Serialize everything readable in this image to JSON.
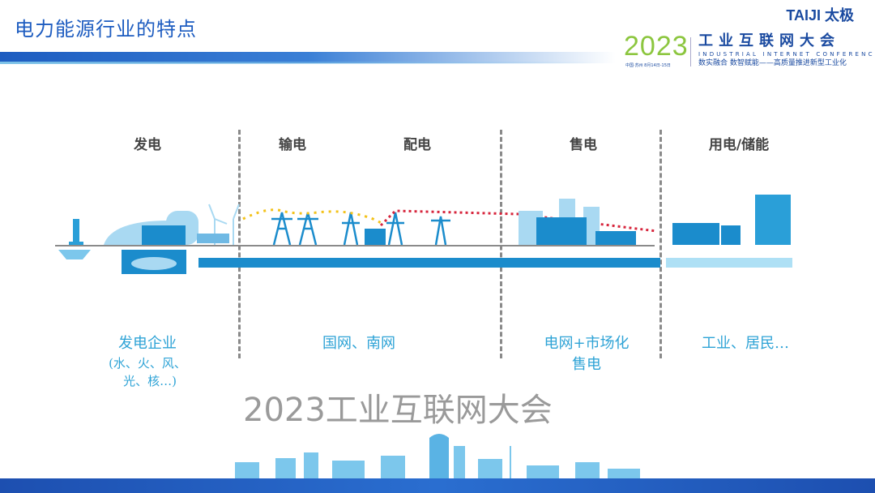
{
  "header": {
    "title": "电力能源行业的特点"
  },
  "logo": {
    "brand": "TAIJI 太极",
    "year": "2023",
    "year_sub": "中国·苏州 8月14日-15日",
    "conf_cn": "工业互联网大会",
    "conf_en": "INDUSTRIAL INTERNET CONFERENCE",
    "slogan": "数实融合 数智赋能——高质量推进新型工业化"
  },
  "stages": [
    {
      "label": "发电"
    },
    {
      "label": "输电"
    },
    {
      "label": "配电"
    },
    {
      "label": "售电"
    },
    {
      "label": "用电/储能"
    }
  ],
  "descriptions": {
    "generation": "发电企业",
    "generation_detail_1": "(水、火、风、",
    "generation_detail_2": "光、核…)",
    "grid": "国网、南网",
    "sales_1": "电网+市场化",
    "sales_2": "售电",
    "consumption": "工业、居民…"
  },
  "watermark": "2023工业互联网大会",
  "colors": {
    "title": "#1d5cc0",
    "label": "#2ea3d6",
    "pipe": "#1b8ccc",
    "year": "#8cc63f"
  }
}
